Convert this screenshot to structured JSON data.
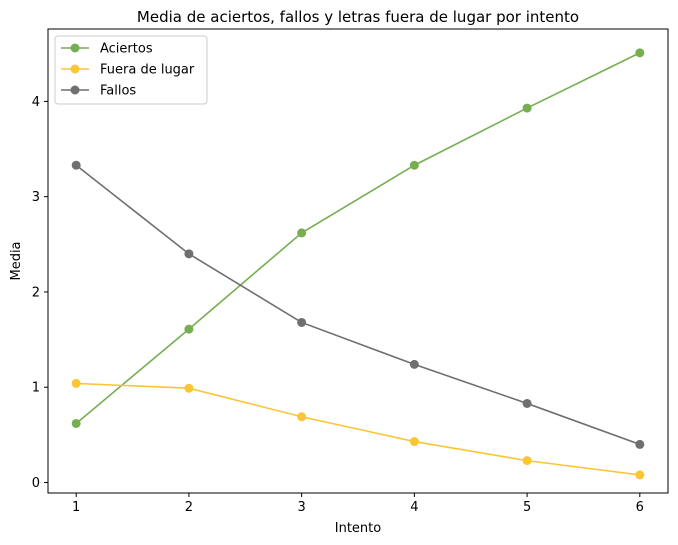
{
  "chart_data": {
    "type": "line",
    "title": "Media de aciertos, fallos y letras fuera de lugar por intento",
    "xlabel": "Intento",
    "ylabel": "Media",
    "x": [
      1,
      2,
      3,
      4,
      5,
      6
    ],
    "xticks": [
      "1",
      "2",
      "3",
      "4",
      "5",
      "6"
    ],
    "yticks": [
      "0",
      "1",
      "2",
      "3",
      "4"
    ],
    "xlim": [
      0.75,
      6.25
    ],
    "ylim": [
      -0.11,
      4.76
    ],
    "grid": false,
    "legend_position": "top-left",
    "series": [
      {
        "name": "Aciertos",
        "color": "#77ae51",
        "values": [
          0.62,
          1.61,
          2.62,
          3.33,
          3.93,
          4.51
        ]
      },
      {
        "name": "Fuera de lugar",
        "color": "#fac637",
        "values": [
          1.04,
          0.99,
          0.69,
          0.43,
          0.23,
          0.08
        ]
      },
      {
        "name": "Fallos",
        "color": "#6f6f6f",
        "values": [
          3.33,
          2.4,
          1.68,
          1.24,
          0.83,
          0.4
        ]
      }
    ]
  }
}
